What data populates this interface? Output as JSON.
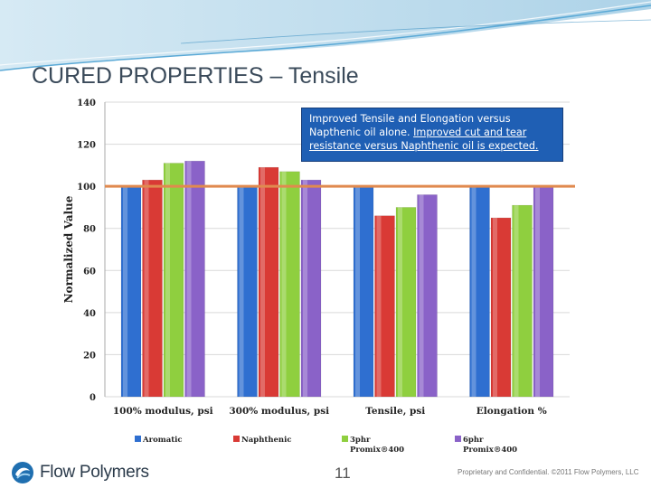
{
  "slide": {
    "title": "CURED PROPERTIES – Tensile",
    "page_number": "11",
    "footer_logo_text": "Flow Polymers",
    "footer_copyright": "Proprietary and Confidential. ©2011 Flow Polymers, LLC"
  },
  "callout": {
    "line1": "Improved Tensile and Elongation versus Napthenic oil alone.",
    "line2": "Improved cut and tear resistance versus Naphthenic oil is expected."
  },
  "chart_data": {
    "type": "bar",
    "title": "",
    "xlabel": "",
    "ylabel": "Normalized Value",
    "ylim": [
      0,
      140
    ],
    "yticks": [
      0,
      20,
      40,
      60,
      80,
      100,
      120,
      140
    ],
    "grid": true,
    "reference_line": 100,
    "legend_position": "bottom",
    "categories": [
      "100% modulus, psi",
      "300% modulus, psi",
      "Tensile, psi",
      "Elongation %"
    ],
    "series": [
      {
        "name": "Aromatic",
        "name_line2": "",
        "color": "#2f6fd0",
        "values": [
          100,
          100,
          100,
          100
        ]
      },
      {
        "name": "Naphthenic",
        "name_line2": "",
        "color": "#d93a35",
        "values": [
          103,
          109,
          86,
          85
        ]
      },
      {
        "name": "3phr",
        "name_line2": "Promix®400",
        "color": "#8fcf3f",
        "values": [
          111,
          107,
          90,
          91
        ]
      },
      {
        "name": "6phr",
        "name_line2": "Promix®400",
        "color": "#8a62c8",
        "values": [
          112,
          103,
          96,
          100
        ]
      }
    ]
  }
}
